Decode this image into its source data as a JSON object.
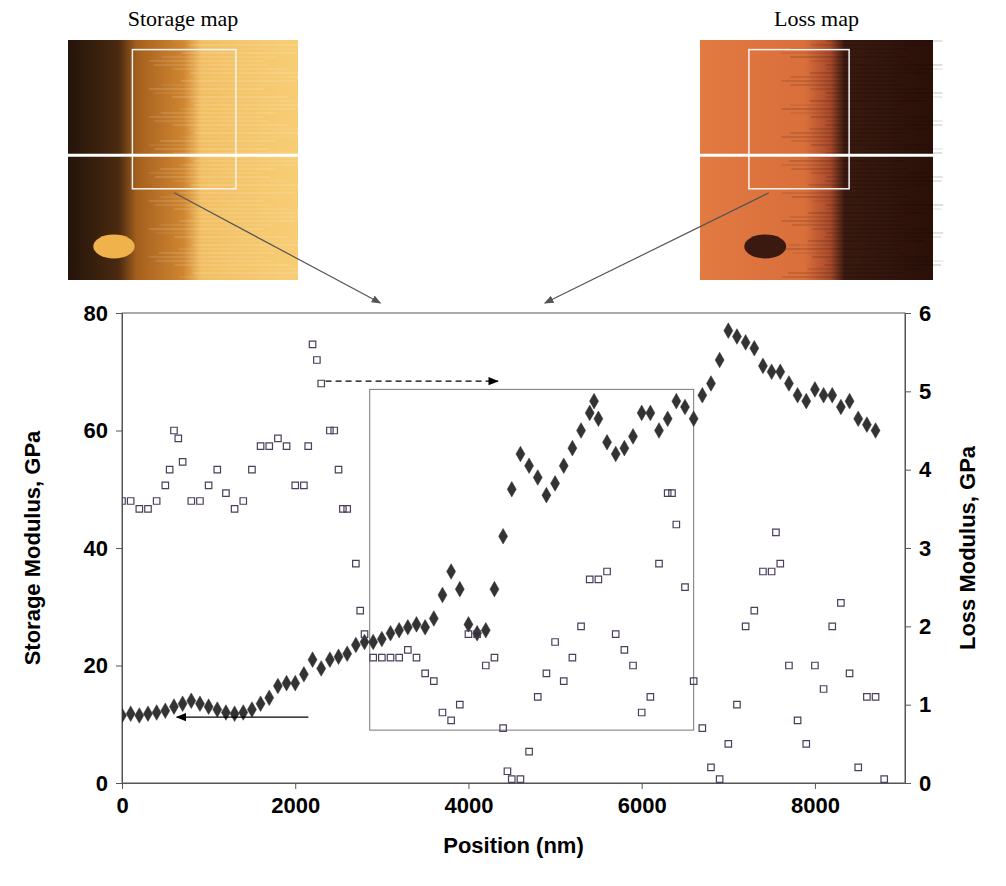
{
  "chart_data": {
    "type": "scatter",
    "x_label": "Position (nm)",
    "y_label": "Storage Modulus, GPa",
    "y2_label": "Loss Modulus, GPa",
    "xlim": [
      0,
      9040
    ],
    "xticks": [
      0,
      2000,
      4000,
      6000,
      8000
    ],
    "ylim": [
      0,
      80
    ],
    "yticks": [
      0,
      20,
      40,
      60,
      80
    ],
    "y2lim": [
      0,
      6
    ],
    "y2ticks": [
      0,
      1,
      2,
      3,
      4,
      5,
      6
    ],
    "highlight_box": {
      "x": [
        2860,
        6600
      ],
      "y": [
        9,
        67
      ]
    },
    "maps": [
      {
        "title": "Storage map"
      },
      {
        "title": "Loss map"
      }
    ],
    "series": [
      {
        "color": "#333333",
        "marker": "diamond",
        "x": [
          0,
          100,
          200,
          300,
          400,
          500,
          600,
          700,
          800,
          900,
          1000,
          1100,
          1200,
          1300,
          1400,
          1500,
          1600,
          1700,
          1800,
          1900,
          2000,
          2100,
          2200,
          2300,
          2400,
          2500,
          2600,
          2700,
          2800,
          2900,
          3000,
          3100,
          3200,
          3300,
          3400,
          3500,
          3600,
          3700,
          3800,
          3900,
          4000,
          4100,
          4200,
          4300,
          4400,
          4500,
          4600,
          4700,
          4800,
          4900,
          5000,
          5100,
          5200,
          5300,
          5400,
          5450,
          5500,
          5600,
          5700,
          5800,
          5900,
          6000,
          6100,
          6200,
          6300,
          6400,
          6500,
          6600,
          6700,
          6800,
          6900,
          7000,
          7100,
          7200,
          7300,
          7400,
          7500,
          7600,
          7700,
          7800,
          7900,
          8000,
          8100,
          8200,
          8300,
          8400,
          8500,
          8600,
          8700
        ],
        "values": [
          11.5,
          11.8,
          11.5,
          11.8,
          12,
          12.3,
          13,
          13.5,
          14,
          13.5,
          13,
          12.5,
          12,
          11.8,
          12,
          12.5,
          13.5,
          14.5,
          16.5,
          17,
          17,
          18.5,
          21,
          19.5,
          21,
          21.5,
          22,
          23.5,
          24,
          24,
          24.5,
          25.5,
          26,
          26.5,
          27,
          26.5,
          28,
          32,
          36,
          33,
          27,
          25.5,
          26,
          33,
          42,
          50,
          56,
          54,
          52,
          49,
          51,
          54,
          57,
          60,
          63,
          65,
          62,
          58,
          56,
          57,
          59,
          63,
          63,
          60,
          62,
          65,
          64,
          62,
          66,
          68,
          72,
          77,
          76,
          75,
          74,
          71,
          70,
          70,
          68,
          66,
          65,
          67,
          66,
          66,
          64,
          65,
          62,
          61,
          60
        ]
      },
      {
        "color": "#4b3f5c",
        "marker": "open-square",
        "axis": "y2",
        "x": [
          0,
          100,
          200,
          300,
          400,
          500,
          550,
          600,
          650,
          700,
          800,
          900,
          1000,
          1100,
          1200,
          1300,
          1400,
          1500,
          1600,
          1700,
          1800,
          1900,
          2000,
          2100,
          2150,
          2200,
          2250,
          2300,
          2400,
          2450,
          2500,
          2550,
          2600,
          2700,
          2750,
          2800,
          2900,
          3000,
          3100,
          3200,
          3300,
          3400,
          3500,
          3600,
          3700,
          3800,
          3900,
          4000,
          4100,
          4200,
          4300,
          4400,
          4450,
          4500,
          4600,
          4700,
          4800,
          4900,
          5000,
          5100,
          5200,
          5300,
          5400,
          5500,
          5600,
          5700,
          5800,
          5900,
          6000,
          6100,
          6200,
          6300,
          6350,
          6400,
          6500,
          6600,
          6700,
          6800,
          6900,
          7000,
          7100,
          7200,
          7300,
          7400,
          7500,
          7550,
          7600,
          7700,
          7800,
          7900,
          8000,
          8100,
          8200,
          8300,
          8400,
          8500,
          8600,
          8700,
          8800
        ],
        "values": [
          3.6,
          3.6,
          3.5,
          3.5,
          3.6,
          3.8,
          4.0,
          4.5,
          4.4,
          4.1,
          3.6,
          3.6,
          3.8,
          4.0,
          3.7,
          3.5,
          3.6,
          4.0,
          4.3,
          4.3,
          4.4,
          4.3,
          3.8,
          3.8,
          4.3,
          5.6,
          5.4,
          5.1,
          4.5,
          4.5,
          4.0,
          3.5,
          3.5,
          2.8,
          2.2,
          1.9,
          1.6,
          1.6,
          1.6,
          1.6,
          1.7,
          1.6,
          1.4,
          1.3,
          0.9,
          0.8,
          1.0,
          1.9,
          1.9,
          1.5,
          1.6,
          0.7,
          0.15,
          0.05,
          0.05,
          0.4,
          1.1,
          1.4,
          1.8,
          1.3,
          1.6,
          2.0,
          2.6,
          2.6,
          2.7,
          1.9,
          1.7,
          1.5,
          0.9,
          1.1,
          2.8,
          3.7,
          3.7,
          3.3,
          2.5,
          1.3,
          0.7,
          0.2,
          0.05,
          0.5,
          1.0,
          2.0,
          2.2,
          2.7,
          2.7,
          3.2,
          2.8,
          1.5,
          0.8,
          0.5,
          1.5,
          1.2,
          2.0,
          2.3,
          1.4,
          0.2,
          1.1,
          1.1,
          0.05
        ]
      }
    ]
  }
}
